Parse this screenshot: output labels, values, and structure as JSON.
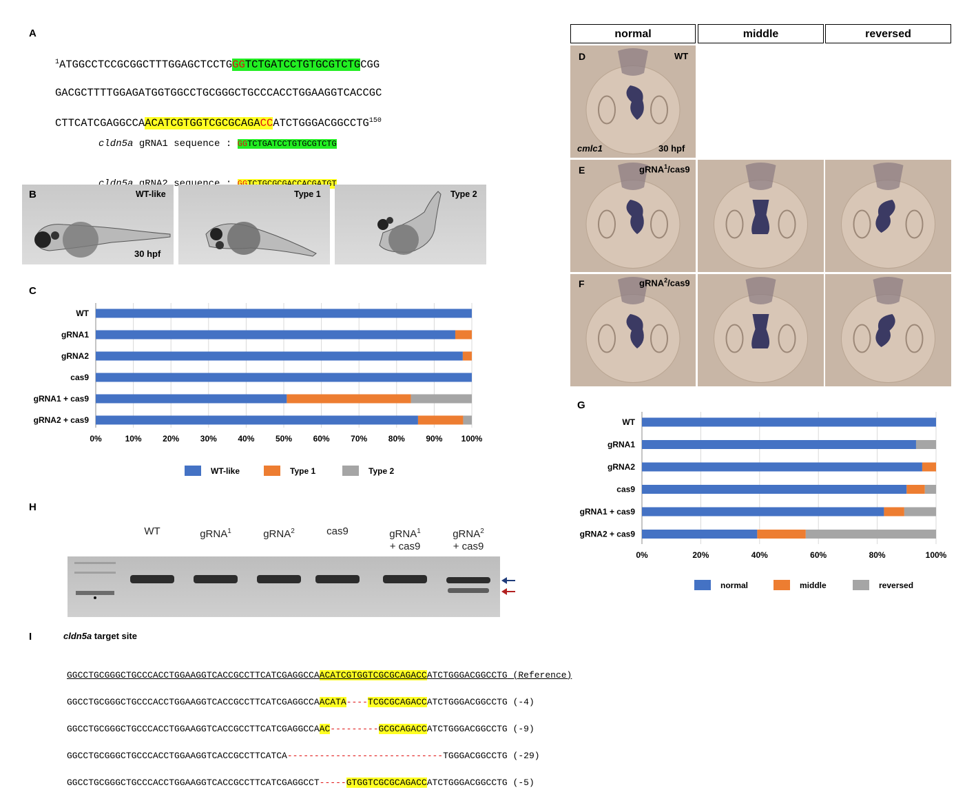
{
  "panels": {
    "A": "A",
    "B": "B",
    "C": "C",
    "D": "D",
    "E": "E",
    "F": "F",
    "G": "G",
    "H": "H",
    "I": "I"
  },
  "panelA": {
    "start_num": "1",
    "end_num": "150",
    "l1a": "ATGGCCTCCGCGGCTTTGGAGCTCCTG",
    "l1b": "GG",
    "l1c": "TCTGATCCTGTGCGTCTG",
    "l1d": "CGG",
    "l2": "GACGCTTTTGGAGATGGTGGCCTGCGGGCTGCCCACCTGGAAGGTCACCGC",
    "l3a": "CTTCATCGAGGCCA",
    "l3b": "ACATCGTGGTCGCGCAGA",
    "l3c": "CC",
    "l3d": "ATCTGGGACGGCCTG",
    "g1_gene": "cldn5a",
    "g1_rest": " gRNA1 sequence : ",
    "g1_pam": "GG",
    "g1_seq": "TCTGATCCTGTGCGTCTG",
    "g2_gene": "cldn5a",
    "g2_rest": " gRNA2 sequence : ",
    "g2_pam": "GG",
    "g2_seq": "TCTGCGCGACCACGATGT"
  },
  "panelB": {
    "labels": [
      "WT-like",
      "Type 1",
      "Type 2"
    ],
    "stage": "30 hpf"
  },
  "panelD": {
    "genotype": "WT",
    "marker": "cmlc1",
    "stage": "30 hpf"
  },
  "panelE": {
    "pre": "gRNA",
    "sup": "1",
    "post": "/cas9"
  },
  "panelF": {
    "pre": "gRNA",
    "sup": "2",
    "post": "/cas9"
  },
  "headers": [
    "normal",
    "middle",
    "reversed"
  ],
  "chart_data": [
    {
      "id": "C",
      "type": "bar",
      "orientation": "horizontal",
      "stacked": true,
      "normalized": true,
      "categories": [
        "WT",
        "gRNA1",
        "gRNA2",
        "cas9",
        "gRNA1 + cas9",
        "gRNA2 + cas9"
      ],
      "series": [
        {
          "name": "WT-like",
          "color": "#4472c4",
          "values": [
            100,
            95.6,
            97.6,
            100,
            50.8,
            85.7
          ]
        },
        {
          "name": "Type 1",
          "color": "#ed7d31",
          "values": [
            0,
            4.4,
            2.4,
            0,
            33.0,
            12.0
          ]
        },
        {
          "name": "Type 2",
          "color": "#a5a5a5",
          "values": [
            0,
            0,
            0,
            0,
            16.2,
            2.3
          ]
        }
      ],
      "xlim": [
        0,
        100
      ],
      "xticks": [
        "0%",
        "10%",
        "20%",
        "30%",
        "40%",
        "50%",
        "60%",
        "70%",
        "80%",
        "90%",
        "100%"
      ],
      "grid": true,
      "legend": "bottom"
    },
    {
      "id": "G",
      "type": "bar",
      "orientation": "horizontal",
      "stacked": true,
      "normalized": true,
      "categories": [
        "WT",
        "gRNA1",
        "gRNA2",
        "cas9",
        "gRNA1 + cas9",
        "gRNA2 + cas9"
      ],
      "series": [
        {
          "name": "normal",
          "color": "#4472c4",
          "values": [
            100,
            93.2,
            95.3,
            90.0,
            82.3,
            39.2
          ]
        },
        {
          "name": "middle",
          "color": "#ed7d31",
          "values": [
            0,
            0,
            4.7,
            6.2,
            6.9,
            16.5
          ]
        },
        {
          "name": "reversed",
          "color": "#a5a5a5",
          "values": [
            0,
            6.8,
            0,
            3.8,
            10.8,
            44.3
          ]
        }
      ],
      "xlim": [
        0,
        100
      ],
      "xticks": [
        "0%",
        "20%",
        "40%",
        "60%",
        "80%",
        "100%"
      ],
      "grid": true,
      "legend": "bottom"
    }
  ],
  "panelH": {
    "lanes": [
      {
        "t": "WT",
        "s": "",
        "b": ""
      },
      {
        "t": "gRNA",
        "s": "1",
        "b": ""
      },
      {
        "t": "gRNA",
        "s": "2",
        "b": ""
      },
      {
        "t": "cas9",
        "s": "",
        "b": ""
      },
      {
        "t": "gRNA",
        "s": "1",
        "b": "+ cas9"
      },
      {
        "t": "gRNA",
        "s": "2",
        "b": "+ cas9"
      }
    ]
  },
  "panelI": {
    "title_gene": "cldn5a",
    "title_rest": " target site",
    "ref_a": "GGCCTGCGGGCTGCCCACCTGGAAGGTCACCGCCTTCATCGAGGCCA",
    "ref_b": "ACATCGTGGTCGCGCAGACC",
    "ref_c": "ATCTGGGACGGCCTG",
    "ref_tag": " (Reference)",
    "m1a": "GGCCTGCGGGCTGCCCACCTGGAAGGTCACCGCCTTCATCGAGGCCA",
    "m1b": "ACATA",
    "m1c": "----",
    "m1d": "TCGCGCAGACC",
    "m1e": "ATCTGGGACGGCCTG",
    "m1t": " (-4)",
    "m2a": "GGCCTGCGGGCTGCCCACCTGGAAGGTCACCGCCTTCATCGAGGCCA",
    "m2b": "AC",
    "m2c": "---------",
    "m2d": "GCGCAGACC",
    "m2e": "ATCTGGGACGGCCTG",
    "m2t": " (-9)",
    "m3a": "GGCCTGCGGGCTGCCCACCTGGAAGGTCACCGCCTTCATCA",
    "m3c": "-----------------------------",
    "m3e": "TGGGACGGCCTG",
    "m3t": " (-29)",
    "m4a": "GGCCTGCGGGCTGCCCACCTGGAAGGTCACCGCCTTCATCGAGGCCT",
    "m4c": "-----",
    "m4d": "GTGGTCGCGCAGACC",
    "m4e": "ATCTGGGACGGCCTG",
    "m4t": " (-5)"
  }
}
